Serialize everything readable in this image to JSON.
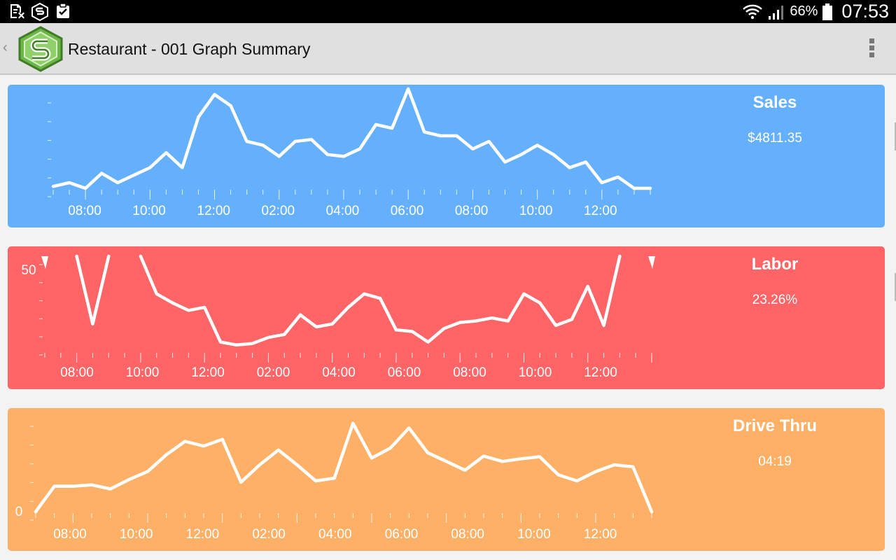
{
  "status_bar": {
    "icons": [
      "document-x-icon",
      "s-logo-notification-icon",
      "clipboard-check-icon"
    ],
    "right_icons": [
      "wifi-icon",
      "signal-icon",
      "battery-icon"
    ],
    "battery": "66%",
    "time": "07:53"
  },
  "app_bar": {
    "title": "Restaurant - 001 Graph Summary",
    "back_icon": "chevron-left-icon",
    "menu_icon": "overflow-menu-icon"
  },
  "cards": [
    {
      "title": "Sales",
      "value": "$4811.35",
      "color": "#65b0fc",
      "chart_data": {
        "type": "line",
        "x_labels": [
          "08:00",
          "10:00",
          "12:00",
          "02:00",
          "04:00",
          "06:00",
          "08:00",
          "10:00",
          "12:00"
        ],
        "y_labels": [],
        "ylim": [
          0,
          10
        ],
        "values": [
          0.2,
          0.6,
          0.0,
          1.6,
          0.6,
          1.4,
          2.2,
          3.8,
          2.2,
          7.6,
          10.0,
          8.8,
          5.0,
          4.6,
          3.4,
          5.0,
          5.2,
          3.6,
          3.4,
          4.2,
          6.8,
          6.4,
          10.6,
          6.0,
          5.6,
          5.6,
          4.2,
          5.0,
          2.8,
          3.6,
          4.6,
          3.6,
          2.2,
          2.8,
          0.6,
          1.2,
          0.0,
          0.0
        ],
        "grid": false
      }
    },
    {
      "title": "Labor",
      "value": "23.26%",
      "color": "#ff6466",
      "chart_data": {
        "type": "line",
        "x_labels": [
          "08:00",
          "10:00",
          "12:00",
          "02:00",
          "04:00",
          "06:00",
          "08:00",
          "10:00",
          "12:00"
        ],
        "y_labels": [
          "50"
        ],
        "ylim": [
          0,
          60
        ],
        "values": [
          60,
          null,
          60,
          15,
          60,
          null,
          60,
          35,
          29,
          24,
          26,
          3,
          1,
          2,
          6,
          8,
          21,
          13,
          15,
          26,
          35,
          32,
          11,
          10,
          3,
          12,
          16,
          17,
          19,
          17,
          35,
          29,
          14,
          18,
          40,
          14,
          60,
          null,
          60
        ],
        "grid": false
      }
    },
    {
      "title": "Drive Thru",
      "value": "04:19",
      "color": "#feb066",
      "chart_data": {
        "type": "line",
        "x_labels": [
          "08:00",
          "10:00",
          "12:00",
          "02:00",
          "04:00",
          "06:00",
          "08:00",
          "10:00",
          "12:00"
        ],
        "y_labels": [
          "0"
        ],
        "ylim": [
          0,
          140
        ],
        "values": [
          0,
          38,
          38,
          40,
          34,
          48,
          60,
          85,
          105,
          98,
          108,
          44,
          70,
          92,
          70,
          46,
          50,
          132,
          80,
          95,
          125,
          88,
          75,
          62,
          83,
          75,
          79,
          82,
          55,
          46,
          60,
          70,
          67,
          0
        ],
        "grid": false
      }
    }
  ]
}
